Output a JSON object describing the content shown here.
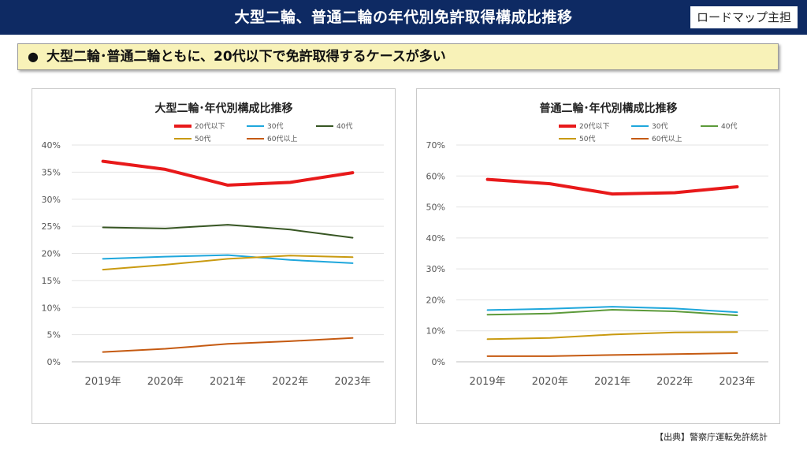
{
  "header": {
    "title": "大型二輪、普通二輪の年代別免許取得構成比推移",
    "badge": "ロードマップ主担"
  },
  "headline": {
    "bullet": "●",
    "text": "大型二輪･普通二輪ともに、20代以下で免許取得するケースが多い"
  },
  "source": "【出典】警察庁運転免許統計",
  "colors": {
    "header_bg": "#0e2a63",
    "headline_bg": "#f8f2b8",
    "20s": "#e8191a",
    "30s": "#1fa7dc",
    "40s_large": "#375623",
    "40s_normal": "#5c9a3a",
    "50s": "#c99a10",
    "60s": "#c55a11"
  },
  "chart_data": [
    {
      "type": "line",
      "title": "大型二輪･年代別構成比推移",
      "categories": [
        "2019年",
        "2020年",
        "2021年",
        "2022年",
        "2023年"
      ],
      "ylim": [
        0,
        0.4
      ],
      "yticks": [
        "0%",
        "5%",
        "10%",
        "15%",
        "20%",
        "25%",
        "30%",
        "35%",
        "40%"
      ],
      "grid": true,
      "legend_position": "top",
      "series": [
        {
          "name": "20代以下",
          "color": "#e8191a",
          "width": 4,
          "values": [
            0.37,
            0.355,
            0.326,
            0.331,
            0.349
          ]
        },
        {
          "name": "30代",
          "color": "#1fa7dc",
          "width": 2,
          "values": [
            0.19,
            0.194,
            0.197,
            0.188,
            0.182
          ]
        },
        {
          "name": "40代",
          "color": "#375623",
          "width": 2,
          "values": [
            0.248,
            0.246,
            0.253,
            0.244,
            0.229
          ]
        },
        {
          "name": "50代",
          "color": "#c99a10",
          "width": 2,
          "values": [
            0.17,
            0.179,
            0.19,
            0.196,
            0.193
          ]
        },
        {
          "name": "60代以上",
          "color": "#c55a11",
          "width": 2,
          "values": [
            0.018,
            0.024,
            0.033,
            0.038,
            0.044
          ]
        }
      ]
    },
    {
      "type": "line",
      "title": "普通二輪･年代別構成比推移",
      "categories": [
        "2019年",
        "2020年",
        "2021年",
        "2022年",
        "2023年"
      ],
      "ylim": [
        0,
        0.7
      ],
      "yticks": [
        "0%",
        "10%",
        "20%",
        "30%",
        "40%",
        "50%",
        "60%",
        "70%"
      ],
      "grid": true,
      "legend_position": "top",
      "series": [
        {
          "name": "20代以下",
          "color": "#e8191a",
          "width": 4,
          "values": [
            0.589,
            0.575,
            0.542,
            0.546,
            0.565
          ]
        },
        {
          "name": "30代",
          "color": "#1fa7dc",
          "width": 2,
          "values": [
            0.167,
            0.171,
            0.178,
            0.172,
            0.16
          ]
        },
        {
          "name": "40代",
          "color": "#5c9a3a",
          "width": 2,
          "values": [
            0.152,
            0.156,
            0.168,
            0.163,
            0.15
          ]
        },
        {
          "name": "50代",
          "color": "#c99a10",
          "width": 2,
          "values": [
            0.073,
            0.077,
            0.088,
            0.095,
            0.096
          ]
        },
        {
          "name": "60代以上",
          "color": "#c55a11",
          "width": 2,
          "values": [
            0.018,
            0.018,
            0.022,
            0.025,
            0.028
          ]
        }
      ]
    }
  ]
}
